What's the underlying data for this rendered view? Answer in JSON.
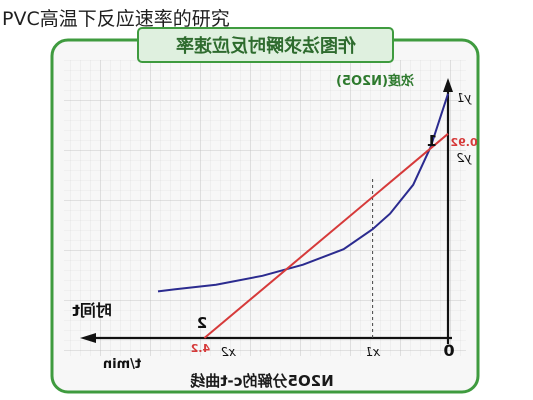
{
  "page": {
    "title": "PVC高温下反应速率的研究"
  },
  "panel": {
    "banner_title": "作图法求瞬时反应速率",
    "border_color": "#3f9b3f",
    "banner_bg": "#dff0df",
    "grid_color": "#cfcfcf",
    "bg": "#f7f7f7"
  },
  "chart_data": {
    "type": "line",
    "mirrored": true,
    "title": "作图法求瞬时反应速率",
    "caption": "N2O5分解的c-t曲线",
    "xlabel": "时间t",
    "x_unit_label": "t/min",
    "ylabel": "浓度(N2O5)",
    "origin_label": "0",
    "x_tick_labels": [
      "x1",
      "x2",
      "4.2"
    ],
    "y_tick_labels": [
      "y1",
      "y2",
      "0.92"
    ],
    "x_ticks": [
      {
        "label": "x1",
        "value": 1.3
      },
      {
        "label": "x2",
        "value": 4.2
      }
    ],
    "y_ticks": [
      {
        "label": "y1",
        "value": 1.1
      },
      {
        "label": "0.92",
        "value": 0.92
      },
      {
        "label": "y2",
        "value": 0.88
      }
    ],
    "xlim": [
      0,
      5.5
    ],
    "ylim": [
      0,
      1.2
    ],
    "series": [
      {
        "name": "1",
        "color": "#2b2b8f",
        "points": [
          [
            0.0,
            1.1
          ],
          [
            0.3,
            0.86
          ],
          [
            0.6,
            0.69
          ],
          [
            1.0,
            0.56
          ],
          [
            1.3,
            0.49
          ],
          [
            1.8,
            0.4
          ],
          [
            2.5,
            0.33
          ],
          [
            3.2,
            0.28
          ],
          [
            4.0,
            0.24
          ],
          [
            4.7,
            0.22
          ],
          [
            5.0,
            0.21
          ]
        ]
      },
      {
        "name": "2",
        "color": "#d63a3a",
        "points": [
          [
            0.0,
            0.92
          ],
          [
            4.2,
            0.0
          ]
        ]
      }
    ],
    "guide_lines": {
      "x": 1.3,
      "style": "dashed"
    },
    "grid": true,
    "legend": "none"
  }
}
